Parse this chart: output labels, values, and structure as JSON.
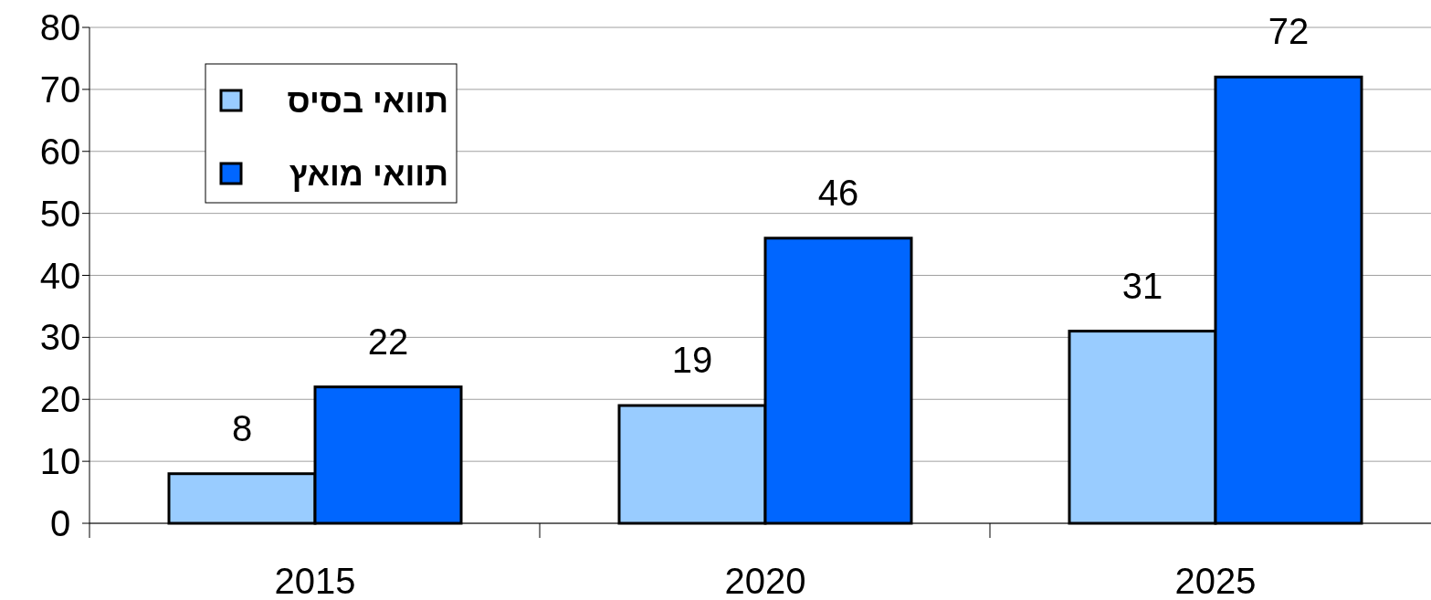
{
  "chart_data": {
    "type": "bar",
    "categories": [
      "2015",
      "2020",
      "2025"
    ],
    "series": [
      {
        "name": "תוואי בסיס",
        "color": "#99ccff",
        "values": [
          8,
          19,
          31
        ]
      },
      {
        "name": "תוואי מואץ",
        "color": "#0066ff",
        "values": [
          22,
          46,
          72
        ]
      }
    ],
    "ylim": [
      0,
      80
    ],
    "yticks": [
      0,
      10,
      20,
      30,
      40,
      50,
      60,
      70,
      80
    ],
    "grid": "y",
    "legend": "top left",
    "data_labels": true
  }
}
